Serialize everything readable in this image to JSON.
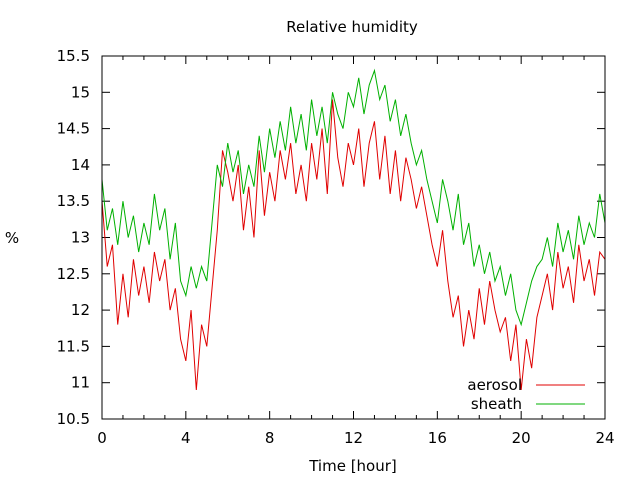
{
  "chart_data": {
    "type": "line",
    "title": "Relative humidity",
    "xlabel": "Time [hour]",
    "ylabel": "%",
    "xlim": [
      0,
      24
    ],
    "ylim": [
      10.5,
      15.5
    ],
    "xticks": [
      0,
      4,
      8,
      12,
      16,
      20,
      24
    ],
    "yticks": [
      10.5,
      11,
      11.5,
      12,
      12.5,
      13,
      13.5,
      14,
      14.5,
      15,
      15.5
    ],
    "grid": false,
    "legend_position": "bottom-right",
    "x": [
      0,
      0.25,
      0.5,
      0.75,
      1,
      1.25,
      1.5,
      1.75,
      2,
      2.25,
      2.5,
      2.75,
      3,
      3.25,
      3.5,
      3.75,
      4,
      4.25,
      4.5,
      4.75,
      5,
      5.25,
      5.5,
      5.75,
      6,
      6.25,
      6.5,
      6.75,
      7,
      7.25,
      7.5,
      7.75,
      8,
      8.25,
      8.5,
      8.75,
      9,
      9.25,
      9.5,
      9.75,
      10,
      10.25,
      10.5,
      10.75,
      11,
      11.25,
      11.5,
      11.75,
      12,
      12.25,
      12.5,
      12.75,
      13,
      13.25,
      13.5,
      13.75,
      14,
      14.25,
      14.5,
      14.75,
      15,
      15.25,
      15.5,
      15.75,
      16,
      16.25,
      16.5,
      16.75,
      17,
      17.25,
      17.5,
      17.75,
      18,
      18.25,
      18.5,
      18.75,
      19,
      19.25,
      19.5,
      19.75,
      20,
      20.25,
      20.5,
      20.75,
      21,
      21.25,
      21.5,
      21.75,
      22,
      22.25,
      22.5,
      22.75,
      23,
      23.25,
      23.5,
      23.75,
      24
    ],
    "series": [
      {
        "name": "aerosol",
        "color": "#e00000",
        "values": [
          13.5,
          12.6,
          12.9,
          11.8,
          12.5,
          11.9,
          12.7,
          12.2,
          12.6,
          12.1,
          12.8,
          12.4,
          12.7,
          12.0,
          12.3,
          11.6,
          11.3,
          12.0,
          10.9,
          11.8,
          11.5,
          12.3,
          13.1,
          14.2,
          13.9,
          13.5,
          14.0,
          13.1,
          13.7,
          13.0,
          14.2,
          13.3,
          13.9,
          13.5,
          14.2,
          13.8,
          14.3,
          13.6,
          14.0,
          13.5,
          14.3,
          13.8,
          14.5,
          13.6,
          14.9,
          14.1,
          13.7,
          14.3,
          14.0,
          14.5,
          13.7,
          14.3,
          14.6,
          13.8,
          14.4,
          13.6,
          14.2,
          13.5,
          14.1,
          13.8,
          13.4,
          13.7,
          13.3,
          12.9,
          12.6,
          13.1,
          12.4,
          11.9,
          12.2,
          11.5,
          12.0,
          11.6,
          12.3,
          11.8,
          12.4,
          12.0,
          11.7,
          11.9,
          11.3,
          11.8,
          10.9,
          11.6,
          11.2,
          11.9,
          12.2,
          12.5,
          12.0,
          12.8,
          12.3,
          12.6,
          12.1,
          12.9,
          12.4,
          12.7,
          12.2,
          12.8,
          12.7
        ],
        "legend_label": "aerosol"
      },
      {
        "name": "sheath",
        "color": "#00b000",
        "values": [
          13.8,
          13.1,
          13.4,
          12.9,
          13.5,
          13.0,
          13.3,
          12.8,
          13.2,
          12.9,
          13.6,
          13.1,
          13.4,
          12.7,
          13.2,
          12.4,
          12.2,
          12.6,
          12.3,
          12.6,
          12.4,
          13.2,
          14.0,
          13.7,
          14.3,
          13.9,
          14.2,
          13.6,
          14.0,
          13.7,
          14.4,
          13.9,
          14.5,
          14.1,
          14.6,
          14.2,
          14.8,
          14.3,
          14.7,
          14.2,
          14.9,
          14.4,
          14.8,
          14.3,
          15.0,
          14.7,
          14.5,
          15.0,
          14.8,
          15.2,
          14.7,
          15.1,
          15.3,
          14.9,
          15.1,
          14.6,
          14.9,
          14.4,
          14.7,
          14.3,
          14.0,
          14.2,
          13.8,
          13.5,
          13.2,
          13.8,
          13.5,
          13.1,
          13.6,
          12.9,
          13.2,
          12.6,
          12.9,
          12.5,
          12.8,
          12.4,
          12.6,
          12.2,
          12.5,
          12.0,
          11.8,
          12.1,
          12.4,
          12.6,
          12.7,
          13.0,
          12.6,
          13.2,
          12.8,
          13.1,
          12.7,
          13.3,
          12.9,
          13.2,
          13.0,
          13.6,
          13.2
        ]
      }
    ]
  }
}
